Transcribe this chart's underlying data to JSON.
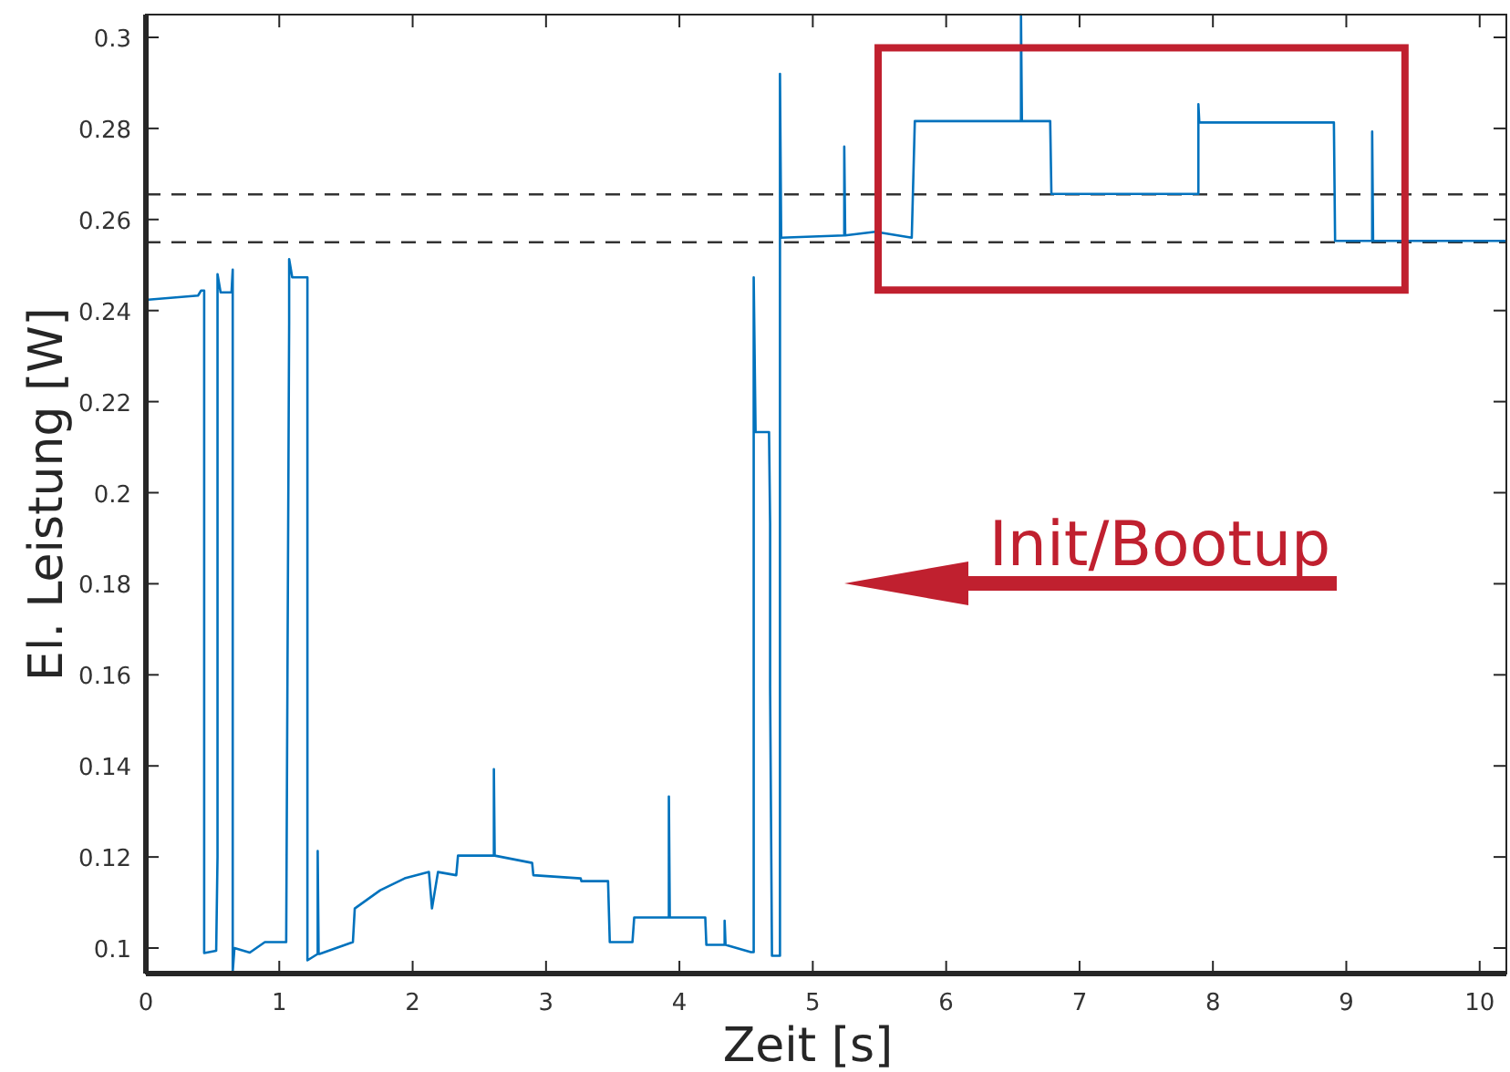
{
  "chart_data": {
    "type": "line",
    "xlabel": "Zeit [s]",
    "ylabel": "El. Leistung [W]",
    "xlim": [
      0,
      10.2
    ],
    "ylim": [
      0.0944,
      0.305
    ],
    "xticks": [
      0,
      1,
      2,
      3,
      4,
      5,
      6,
      7,
      8,
      9,
      10
    ],
    "yticks": [
      0.1,
      0.12,
      0.14,
      0.16,
      0.18,
      0.2,
      0.22,
      0.24,
      0.26,
      0.28,
      0.3
    ],
    "grid": false,
    "line_style": "solid",
    "series": [
      {
        "color": "#0072bd",
        "x": [
          0.018,
          0.391,
          0.414,
          0.437,
          0.437,
          0.527,
          0.537,
          0.537,
          0.56,
          0.642,
          0.651,
          0.651,
          0.664,
          0.779,
          0.892,
          1.052,
          1.074,
          1.074,
          1.097,
          1.111,
          1.211,
          1.211,
          1.288,
          1.288,
          1.295,
          1.302,
          1.552,
          1.566,
          1.757,
          1.94,
          2.122,
          2.145,
          2.19,
          2.327,
          2.34,
          2.609,
          2.609,
          2.615,
          2.896,
          2.905,
          3.26,
          3.265,
          3.465,
          3.478,
          3.648,
          3.661,
          3.921,
          3.921,
          3.928,
          4.194,
          4.202,
          4.339,
          4.339,
          4.346,
          4.536,
          4.557,
          4.557,
          4.571,
          4.672,
          4.68,
          4.68,
          4.694,
          4.74,
          4.754,
          4.754,
          4.763,
          5.236,
          5.236,
          5.243,
          5.469,
          5.742,
          5.765,
          6.561,
          6.561,
          6.568,
          6.78,
          6.789,
          7.882,
          7.891,
          7.891,
          7.898,
          8.907,
          8.916,
          9.194,
          9.194,
          9.201,
          10.2
        ],
        "values": [
          0.2424,
          0.2433,
          0.2444,
          0.2444,
          0.0989,
          0.0994,
          0.12,
          0.248,
          0.244,
          0.244,
          0.249,
          0.0948,
          0.1,
          0.099,
          0.1013,
          0.1013,
          0.2373,
          0.2513,
          0.2473,
          0.2473,
          0.2473,
          0.0973,
          0.0987,
          0.1213,
          0.0987,
          0.0987,
          0.1013,
          0.1087,
          0.1127,
          0.1153,
          0.1167,
          0.1087,
          0.1167,
          0.116,
          0.1203,
          0.1203,
          0.1393,
          0.1203,
          0.1187,
          0.116,
          0.1153,
          0.1147,
          0.1147,
          0.1013,
          0.1013,
          0.1067,
          0.1067,
          0.1333,
          0.1067,
          0.1067,
          0.1007,
          0.1007,
          0.106,
          0.1007,
          0.0991,
          0.0991,
          0.2473,
          0.2133,
          0.2133,
          0.1933,
          0.1573,
          0.0983,
          0.0983,
          0.0983,
          0.292,
          0.256,
          0.2565,
          0.276,
          0.2565,
          0.2573,
          0.256,
          0.2816,
          0.2816,
          0.305,
          0.2816,
          0.2816,
          0.2656,
          0.2656,
          0.2656,
          0.2853,
          0.2813,
          0.2813,
          0.2553,
          0.2553,
          0.2793,
          0.2553,
          0.2553
        ]
      }
    ],
    "ref_lines": [
      {
        "axis": "y",
        "value": 0.2655,
        "color": "#333333",
        "line_style": "dashed"
      },
      {
        "axis": "y",
        "value": 0.255,
        "color": "#333333",
        "line_style": "dashed"
      }
    ],
    "annotations": [
      "Init/Bootup"
    ]
  }
}
